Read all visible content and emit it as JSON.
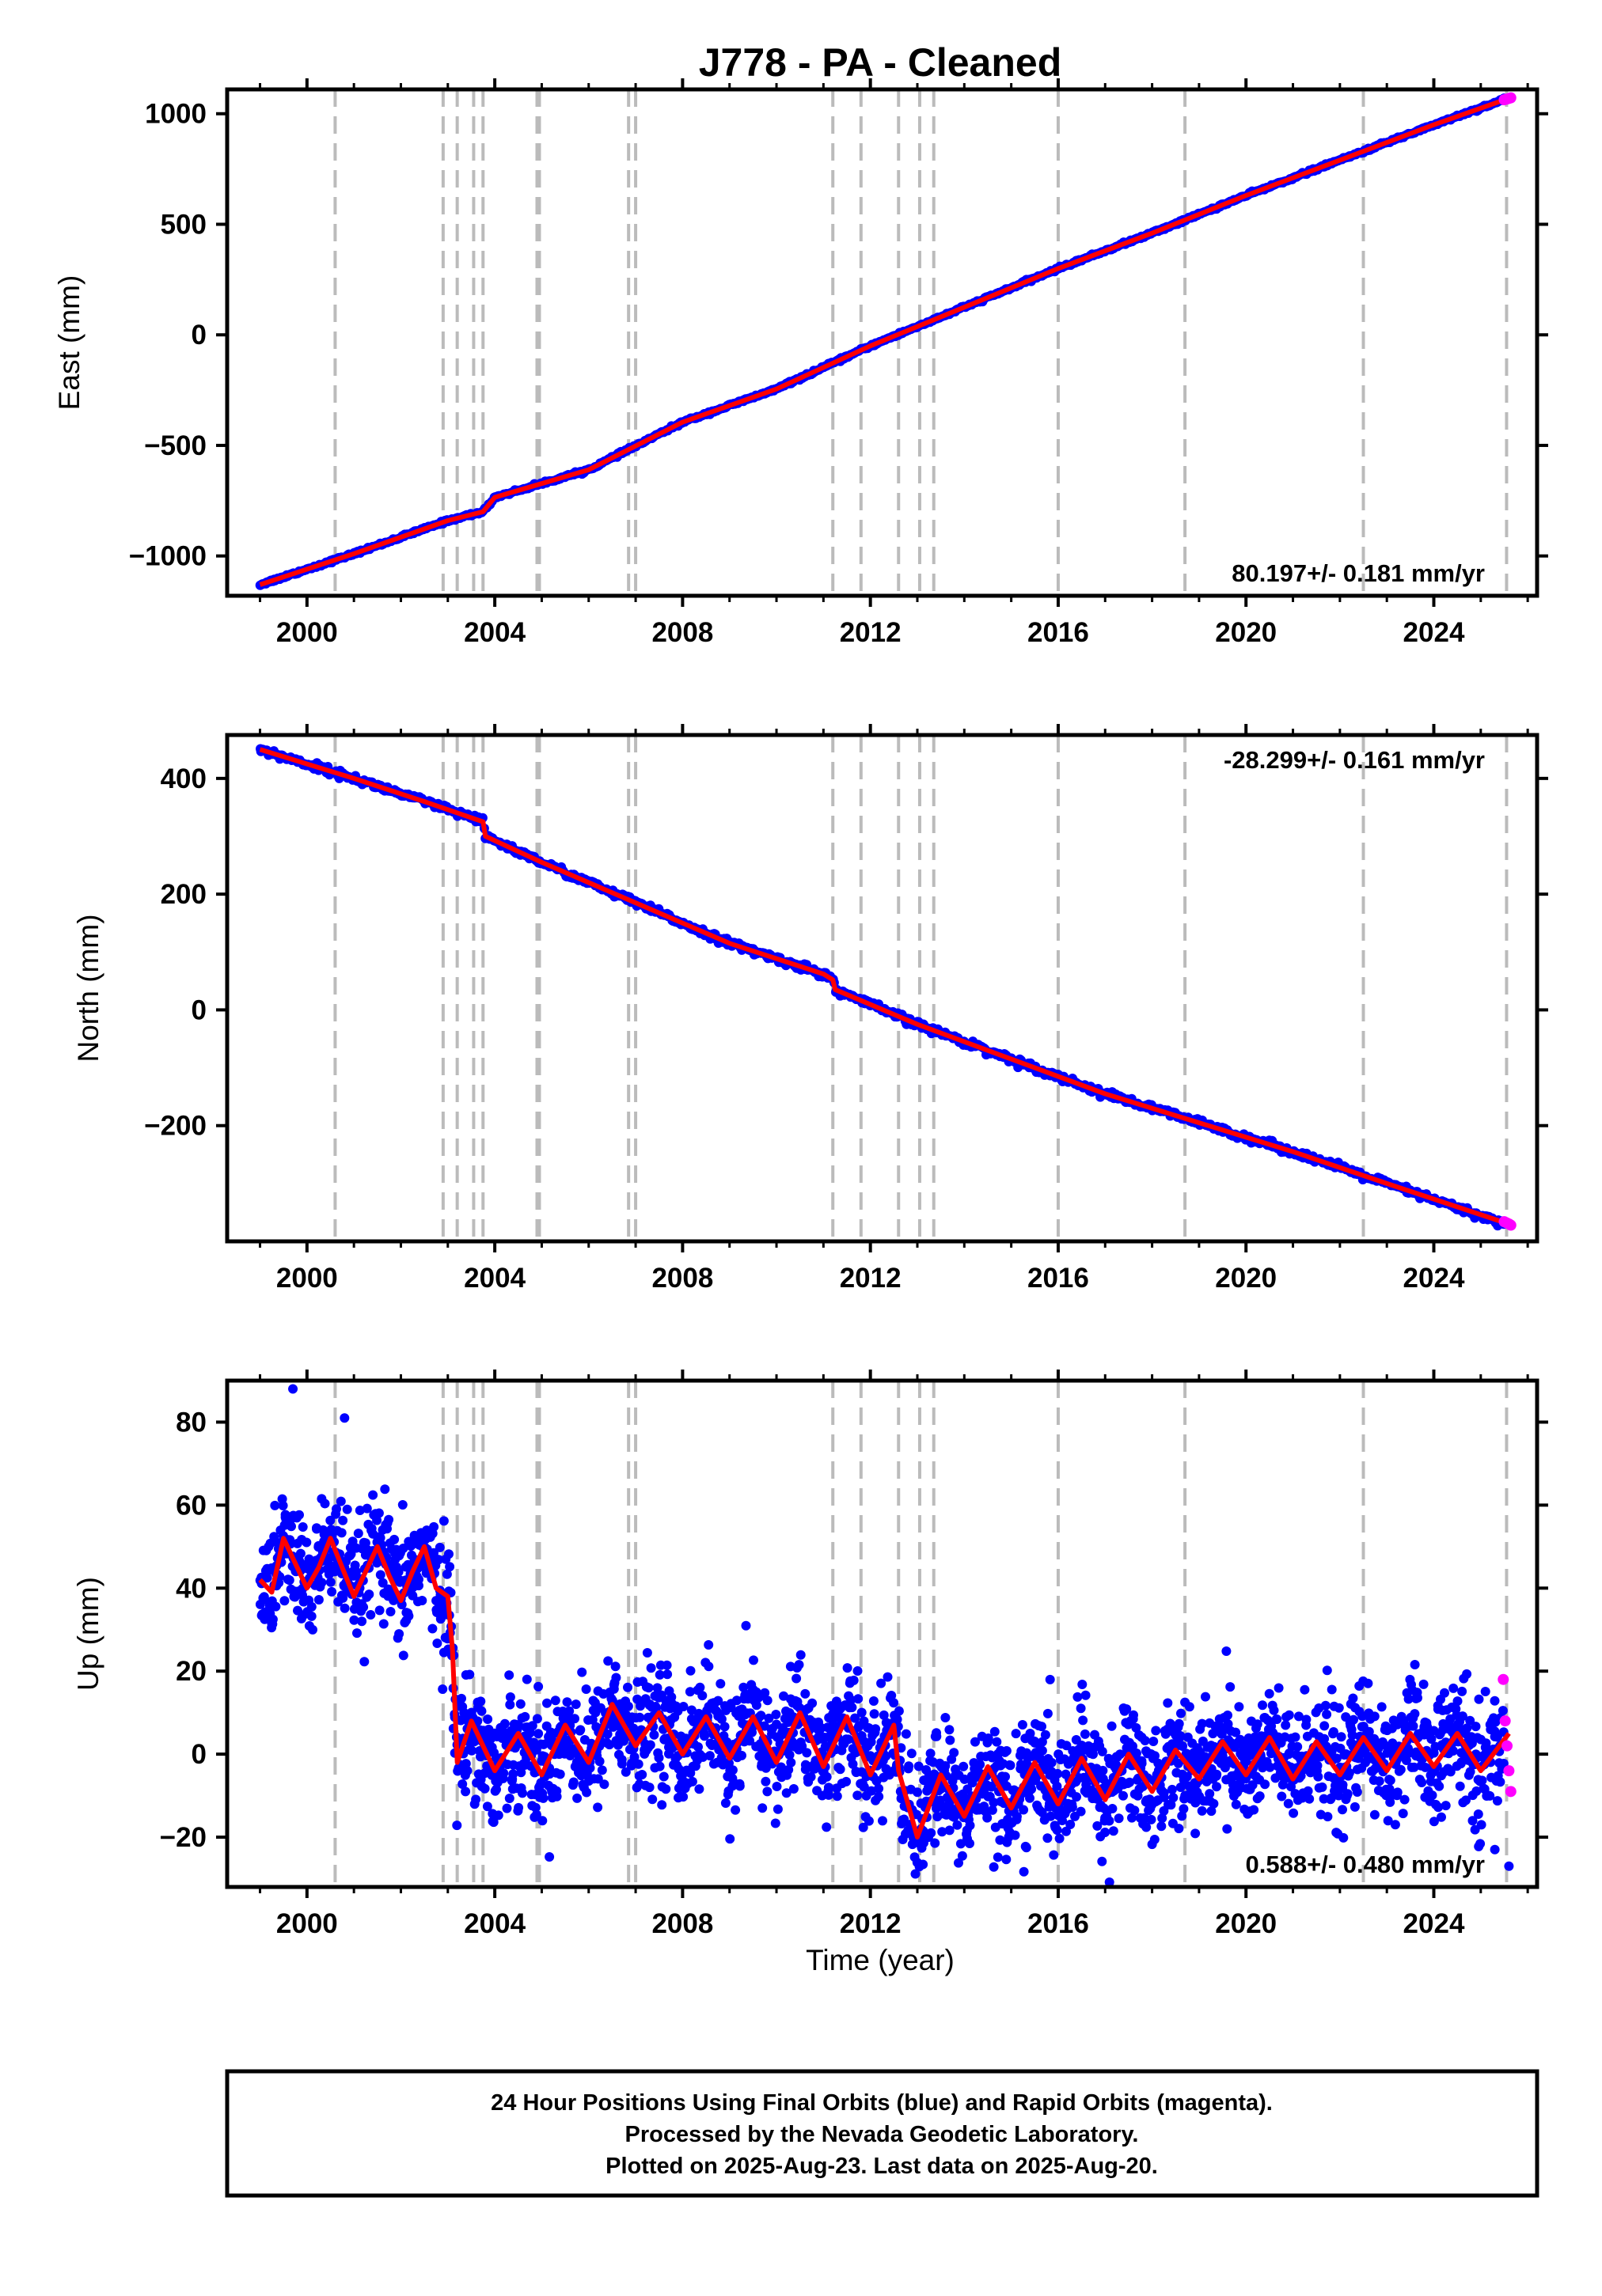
{
  "title": "J778  - PA - Cleaned",
  "xlabel": "Time (year)",
  "footer": {
    "line1": "24 Hour Positions Using Final Orbits (blue) and Rapid Orbits (magenta).",
    "line2": "Processed by the Nevada Geodetic Laboratory.",
    "line3": "Plotted on 2025-Aug-23. Last data on 2025-Aug-20."
  },
  "colors": {
    "final_orbits": "#0000ff",
    "rapid_orbits": "#ff00ff",
    "model": "#ff0000",
    "events": "#bbbbbb"
  },
  "chart_data": [
    {
      "type": "scatter",
      "ylabel": "East (mm)",
      "xlim": [
        1998.3,
        2026.2
      ],
      "ylim": [
        -1180,
        1110
      ],
      "xticks": [
        2000,
        2004,
        2008,
        2012,
        2016,
        2020,
        2024
      ],
      "yticks": [
        -1000,
        -500,
        0,
        500,
        1000
      ],
      "grid": false,
      "rate_label": "80.197+/- 0.181 mm/yr",
      "rate_position": "bottom-right",
      "event_lines": [
        2000.6,
        2002.9,
        2003.2,
        2003.55,
        2003.75,
        2004.9,
        2004.95,
        2006.85,
        2007.0,
        2011.2,
        2011.8,
        2012.6,
        2013.05,
        2013.35,
        2016.0,
        2018.7,
        2022.5,
        2025.55
      ],
      "series": [
        {
          "name": "Final Orbits",
          "style": "points",
          "color": "#0000ff",
          "x": [
            1999.0,
            2001.0,
            2003.0,
            2003.75,
            2004.0,
            2006.0,
            2008.0,
            2010.0,
            2012.0,
            2014.0,
            2016.0,
            2018.0,
            2020.0,
            2022.0,
            2024.0,
            2025.5
          ],
          "y": [
            -1130,
            -990,
            -840,
            -800,
            -735,
            -610,
            -395,
            -245,
            -50,
            125,
            300,
            460,
            630,
            790,
            950,
            1065
          ]
        },
        {
          "name": "Rapid Orbits",
          "style": "points",
          "color": "#ff00ff",
          "x": [
            2025.5,
            2025.55,
            2025.6,
            2025.64
          ],
          "y": [
            1063,
            1066,
            1069,
            1072
          ]
        },
        {
          "name": "Model",
          "style": "line",
          "color": "#ff0000",
          "x": [
            1999.0,
            2001.0,
            2003.0,
            2003.75,
            2004.0,
            2006.0,
            2008.0,
            2010.0,
            2012.0,
            2014.0,
            2016.0,
            2018.0,
            2020.0,
            2022.0,
            2024.0,
            2025.6
          ],
          "y": [
            -1130,
            -990,
            -840,
            -800,
            -735,
            -610,
            -395,
            -245,
            -50,
            125,
            300,
            460,
            630,
            790,
            950,
            1070
          ]
        }
      ]
    },
    {
      "type": "scatter",
      "ylabel": "North (mm)",
      "xlim": [
        1998.3,
        2026.2
      ],
      "ylim": [
        -400,
        475
      ],
      "xticks": [
        2000,
        2004,
        2008,
        2012,
        2016,
        2020,
        2024
      ],
      "yticks": [
        -200,
        0,
        200,
        400
      ],
      "grid": false,
      "rate_label": "-28.299+/- 0.161 mm/yr",
      "rate_position": "top-right",
      "event_lines": [
        2000.6,
        2002.9,
        2003.2,
        2003.55,
        2003.75,
        2004.9,
        2004.95,
        2006.85,
        2007.0,
        2011.2,
        2011.8,
        2012.6,
        2013.05,
        2013.35,
        2016.0,
        2018.7,
        2022.5,
        2025.55
      ],
      "series": [
        {
          "name": "Final Orbits",
          "style": "points",
          "color": "#0000ff",
          "x": [
            1999.0,
            2001.0,
            2002.5,
            2003.75,
            2003.8,
            2005.0,
            2007.0,
            2009.0,
            2011.0,
            2011.2,
            2011.25,
            2013.0,
            2015.0,
            2017.0,
            2019.0,
            2021.0,
            2023.0,
            2025.5
          ],
          "y": [
            450,
            400,
            360,
            325,
            300,
            255,
            185,
            115,
            62,
            52,
            35,
            -25,
            -85,
            -145,
            -195,
            -245,
            -300,
            -370
          ]
        },
        {
          "name": "Rapid Orbits",
          "style": "points",
          "color": "#ff00ff",
          "x": [
            2025.5,
            2025.55,
            2025.6,
            2025.64
          ],
          "y": [
            -366,
            -368,
            -370,
            -372
          ]
        },
        {
          "name": "Model",
          "style": "line",
          "color": "#ff0000",
          "x": [
            1999.0,
            2001.0,
            2002.5,
            2003.75,
            2003.8,
            2005.0,
            2007.0,
            2009.0,
            2011.0,
            2011.2,
            2011.25,
            2013.0,
            2015.0,
            2017.0,
            2019.0,
            2021.0,
            2023.0,
            2025.6
          ],
          "y": [
            450,
            400,
            360,
            325,
            300,
            255,
            185,
            115,
            62,
            52,
            35,
            -25,
            -85,
            -145,
            -195,
            -245,
            -300,
            -370
          ]
        }
      ]
    },
    {
      "type": "scatter",
      "ylabel": "Up (mm)",
      "xlim": [
        1998.3,
        2026.2
      ],
      "ylim": [
        -32,
        90
      ],
      "xticks": [
        2000,
        2004,
        2008,
        2012,
        2016,
        2020,
        2024
      ],
      "yticks": [
        -20,
        0,
        20,
        40,
        60,
        80
      ],
      "grid": false,
      "rate_label": "0.588+/- 0.480 mm/yr",
      "rate_position": "bottom-right",
      "event_lines": [
        2000.6,
        2002.9,
        2003.2,
        2003.55,
        2003.75,
        2004.9,
        2004.95,
        2006.85,
        2007.0,
        2011.2,
        2011.8,
        2012.6,
        2013.05,
        2013.35,
        2016.0,
        2018.7,
        2022.5,
        2025.55
      ],
      "series": [
        {
          "name": "Final Orbits",
          "style": "points",
          "color": "#0000ff",
          "x": [
            1999.0,
            1999.25,
            1999.5,
            1999.75,
            2000.0,
            2000.25,
            2000.5,
            2000.75,
            2001.0,
            2001.25,
            2001.5,
            2001.75,
            2002.0,
            2002.25,
            2002.5,
            2002.75,
            2003.0,
            2003.1,
            2003.2,
            2003.5,
            2004.0,
            2004.5,
            2005.0,
            2005.5,
            2006.0,
            2006.5,
            2007.0,
            2007.5,
            2008.0,
            2008.5,
            2009.0,
            2009.5,
            2010.0,
            2010.5,
            2011.0,
            2011.5,
            2012.0,
            2012.5,
            2012.6,
            2012.7,
            2013.0,
            2013.5,
            2014.0,
            2014.5,
            2015.0,
            2015.5,
            2016.0,
            2016.5,
            2017.0,
            2017.5,
            2018.0,
            2018.5,
            2019.0,
            2019.5,
            2020.0,
            2020.5,
            2021.0,
            2021.5,
            2022.0,
            2022.5,
            2023.0,
            2023.5,
            2024.0,
            2024.5,
            2025.0,
            2025.5
          ],
          "y": [
            42,
            39,
            52,
            46,
            40,
            45,
            52,
            45,
            38,
            44,
            50,
            43,
            37,
            44,
            50,
            40,
            38,
            25,
            -2,
            8,
            -4,
            5,
            -5,
            7,
            -2,
            12,
            2,
            10,
            0,
            9,
            -1,
            9,
            -2,
            10,
            -3,
            9,
            -5,
            7,
            -4,
            -8,
            -20,
            -5,
            -15,
            -3,
            -13,
            -2,
            -12,
            -1,
            -11,
            0,
            -9,
            1,
            -6,
            3,
            -5,
            4,
            -6,
            3,
            -5,
            4,
            -4,
            5,
            -3,
            5,
            -4,
            3
          ]
        },
        {
          "name": "Rapid Orbits",
          "style": "points",
          "color": "#ff00ff",
          "x": [
            2025.48,
            2025.52,
            2025.56,
            2025.6,
            2025.64
          ],
          "y": [
            18,
            8,
            2,
            -4,
            -9
          ]
        },
        {
          "name": "Model",
          "style": "line",
          "color": "#ff0000",
          "x": [
            1999.0,
            1999.25,
            1999.5,
            1999.75,
            2000.0,
            2000.25,
            2000.5,
            2000.75,
            2001.0,
            2001.25,
            2001.5,
            2001.75,
            2002.0,
            2002.25,
            2002.5,
            2002.75,
            2003.0,
            2003.1,
            2003.2,
            2003.5,
            2004.0,
            2004.5,
            2005.0,
            2005.5,
            2006.0,
            2006.5,
            2007.0,
            2007.5,
            2008.0,
            2008.5,
            2009.0,
            2009.5,
            2010.0,
            2010.5,
            2011.0,
            2011.5,
            2012.0,
            2012.5,
            2012.6,
            2012.7,
            2013.0,
            2013.5,
            2014.0,
            2014.5,
            2015.0,
            2015.5,
            2016.0,
            2016.5,
            2017.0,
            2017.5,
            2018.0,
            2018.5,
            2019.0,
            2019.5,
            2020.0,
            2020.5,
            2021.0,
            2021.5,
            2022.0,
            2022.5,
            2023.0,
            2023.5,
            2024.0,
            2024.5,
            2025.0,
            2025.6
          ],
          "y": [
            42,
            39,
            52,
            46,
            40,
            45,
            52,
            45,
            38,
            44,
            50,
            43,
            37,
            44,
            50,
            40,
            38,
            25,
            -2,
            8,
            -4,
            5,
            -5,
            7,
            -2,
            12,
            2,
            10,
            0,
            9,
            -1,
            9,
            -2,
            10,
            -3,
            9,
            -5,
            7,
            -4,
            -8,
            -20,
            -5,
            -15,
            -3,
            -13,
            -2,
            -12,
            -1,
            -11,
            0,
            -9,
            1,
            -6,
            3,
            -5,
            4,
            -6,
            3,
            -5,
            4,
            -4,
            5,
            -3,
            5,
            -4,
            5
          ]
        }
      ]
    }
  ]
}
